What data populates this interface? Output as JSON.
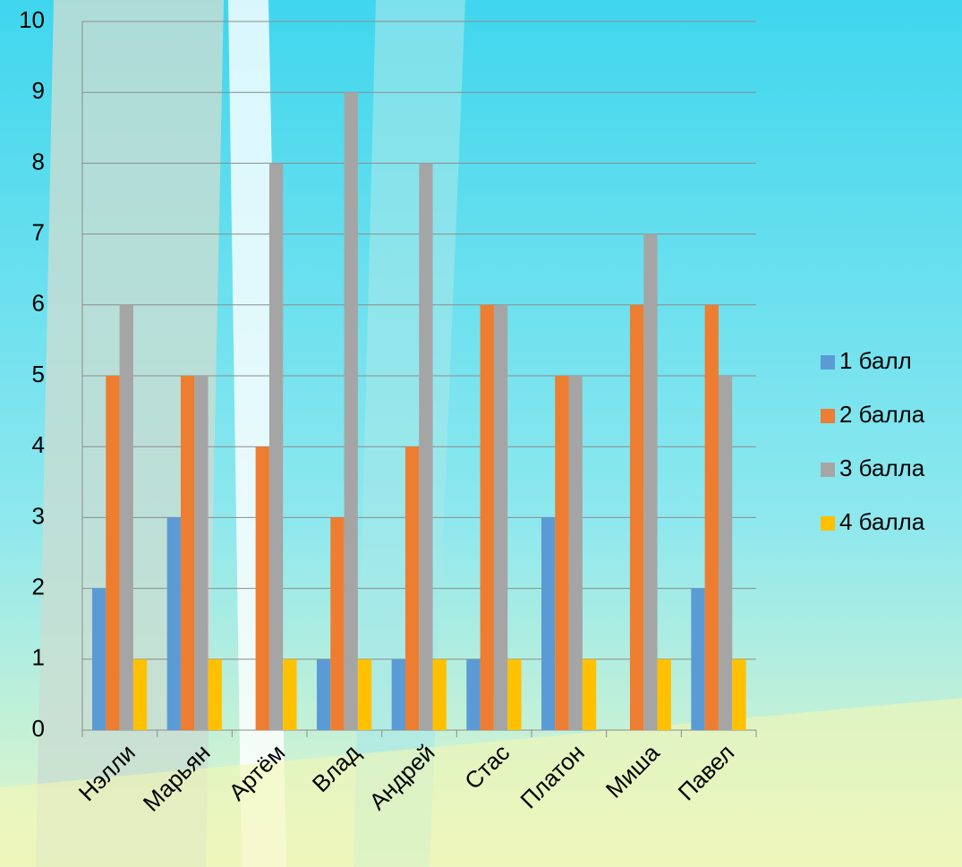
{
  "chart_data": {
    "type": "bar",
    "categories": [
      "Нэлли",
      "Марьян",
      "Артём",
      "Влад",
      "Андрей",
      "Стас",
      "Платон",
      "Миша",
      "Павел"
    ],
    "series": [
      {
        "name": "1 балл",
        "color": "#5b9bd5",
        "values": [
          2,
          3,
          0,
          1,
          1,
          1,
          3,
          0,
          2
        ]
      },
      {
        "name": "2 балла",
        "color": "#ed7d31",
        "values": [
          5,
          5,
          4,
          3,
          4,
          6,
          5,
          6,
          6
        ]
      },
      {
        "name": "3 балла",
        "color": "#a5a5a5",
        "values": [
          6,
          5,
          8,
          9,
          8,
          6,
          5,
          7,
          5
        ]
      },
      {
        "name": "4 балла",
        "color": "#ffc000",
        "values": [
          1,
          1,
          1,
          1,
          1,
          1,
          1,
          1,
          1
        ]
      }
    ],
    "ylim": [
      0,
      10
    ],
    "yticks": [
      0,
      1,
      2,
      3,
      4,
      5,
      6,
      7,
      8,
      9,
      10
    ],
    "grid": true,
    "legend": "right"
  }
}
